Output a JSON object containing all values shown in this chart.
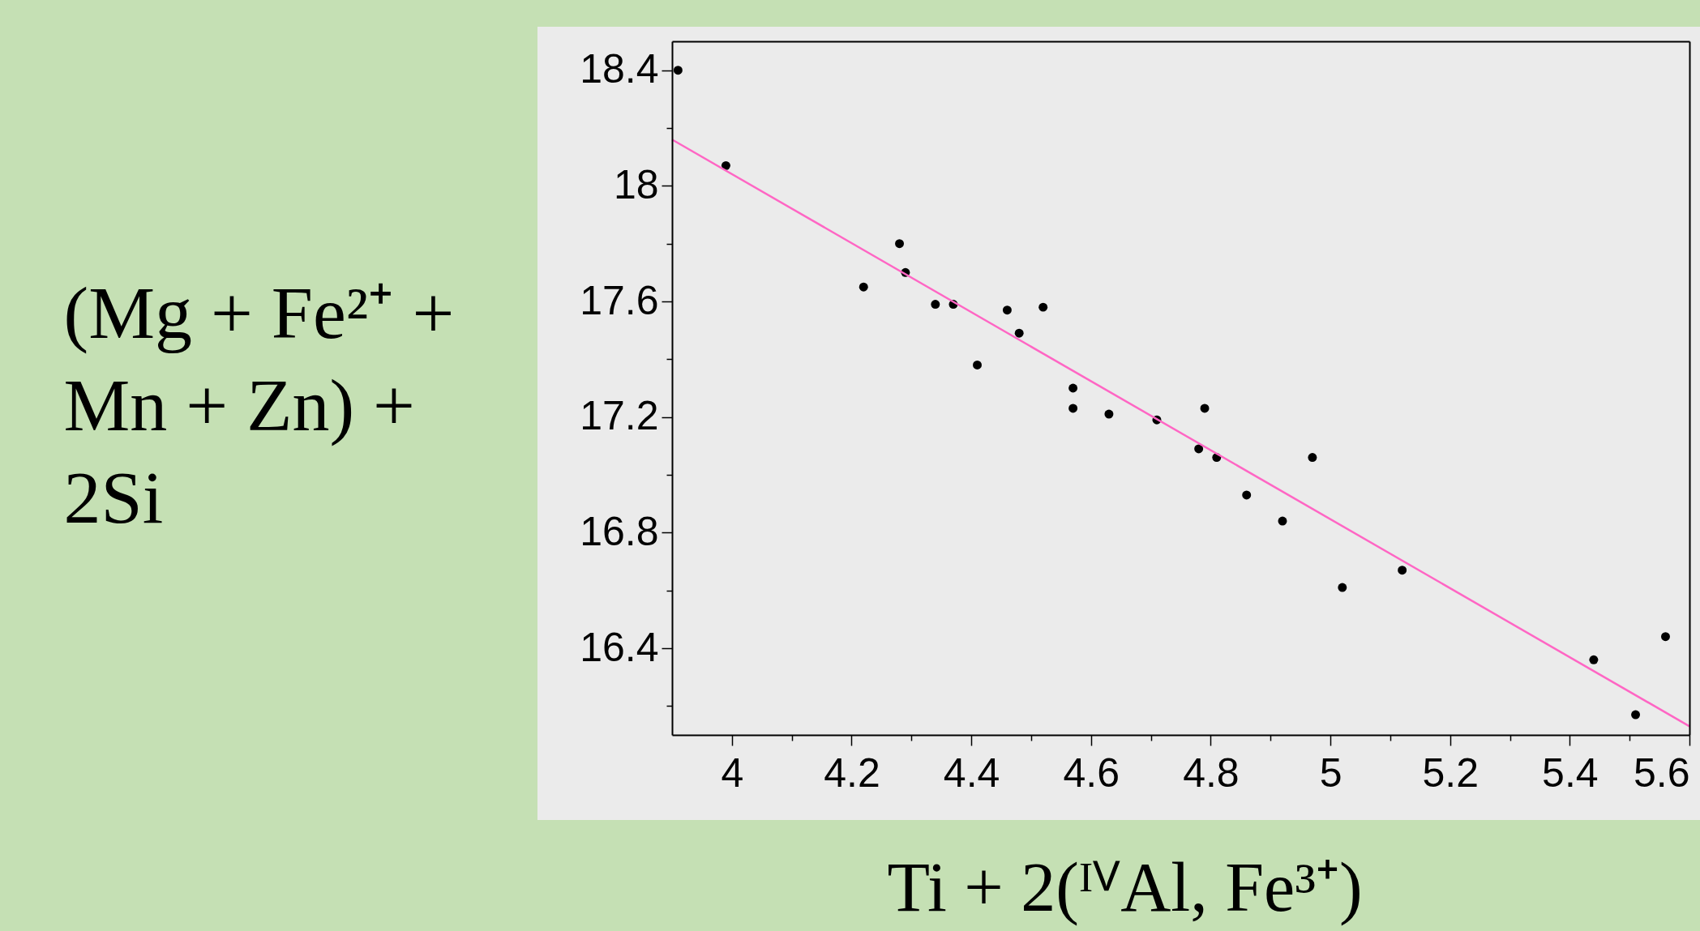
{
  "chart_data": {
    "type": "scatter",
    "xlabel": "Ti + 2(ᴵⱽAl, Fe³⁺)",
    "ylabel": "(Mg + Fe²⁺ +\nMn + Zn) +\n2Si",
    "xlim": [
      3.9,
      5.6
    ],
    "ylim": [
      16.1,
      18.5
    ],
    "xticks": [
      4,
      {
        "value": 4.1,
        "label": null
      },
      4.2,
      {
        "value": 4.3,
        "label": null
      },
      4.4,
      {
        "value": 4.5,
        "label": null
      },
      4.6,
      {
        "value": 4.7,
        "label": null
      },
      4.8,
      {
        "value": 4.9,
        "label": null
      },
      5,
      {
        "value": 5.1,
        "label": null
      },
      5.2,
      {
        "value": 5.3,
        "label": null
      },
      5.4,
      {
        "value": 5.5,
        "label": null
      },
      5.6
    ],
    "yticks": [
      {
        "value": 16.2,
        "label": null
      },
      16.4,
      {
        "value": 16.6,
        "label": null
      },
      16.8,
      {
        "value": 17.0,
        "label": null
      },
      17.2,
      {
        "value": 17.4,
        "label": null
      },
      17.6,
      {
        "value": 17.8,
        "label": null
      },
      18,
      {
        "value": 18.2,
        "label": null
      },
      18.4
    ],
    "grid": false,
    "series": [
      {
        "marker": "circle",
        "color": "#000000",
        "x": [
          3.91,
          3.99,
          4.22,
          4.28,
          4.29,
          4.34,
          4.37,
          4.41,
          4.46,
          4.48,
          4.52,
          4.57,
          4.57,
          4.63,
          4.71,
          4.79,
          4.78,
          4.81,
          4.86,
          4.92,
          4.97,
          5.02,
          5.12,
          5.44,
          5.51,
          5.56
        ],
        "values": [
          18.4,
          18.07,
          17.65,
          17.8,
          17.7,
          17.59,
          17.59,
          17.38,
          17.57,
          17.49,
          17.58,
          17.3,
          17.23,
          17.21,
          17.19,
          17.23,
          17.09,
          17.06,
          16.93,
          16.84,
          17.06,
          16.61,
          16.67,
          16.36,
          16.17,
          16.44
        ]
      },
      {
        "type": "line",
        "marker": "none",
        "color": "#ff66c4",
        "line_style": "solid",
        "x": [
          3.9,
          5.6
        ],
        "values": [
          18.16,
          16.13
        ]
      }
    ]
  }
}
